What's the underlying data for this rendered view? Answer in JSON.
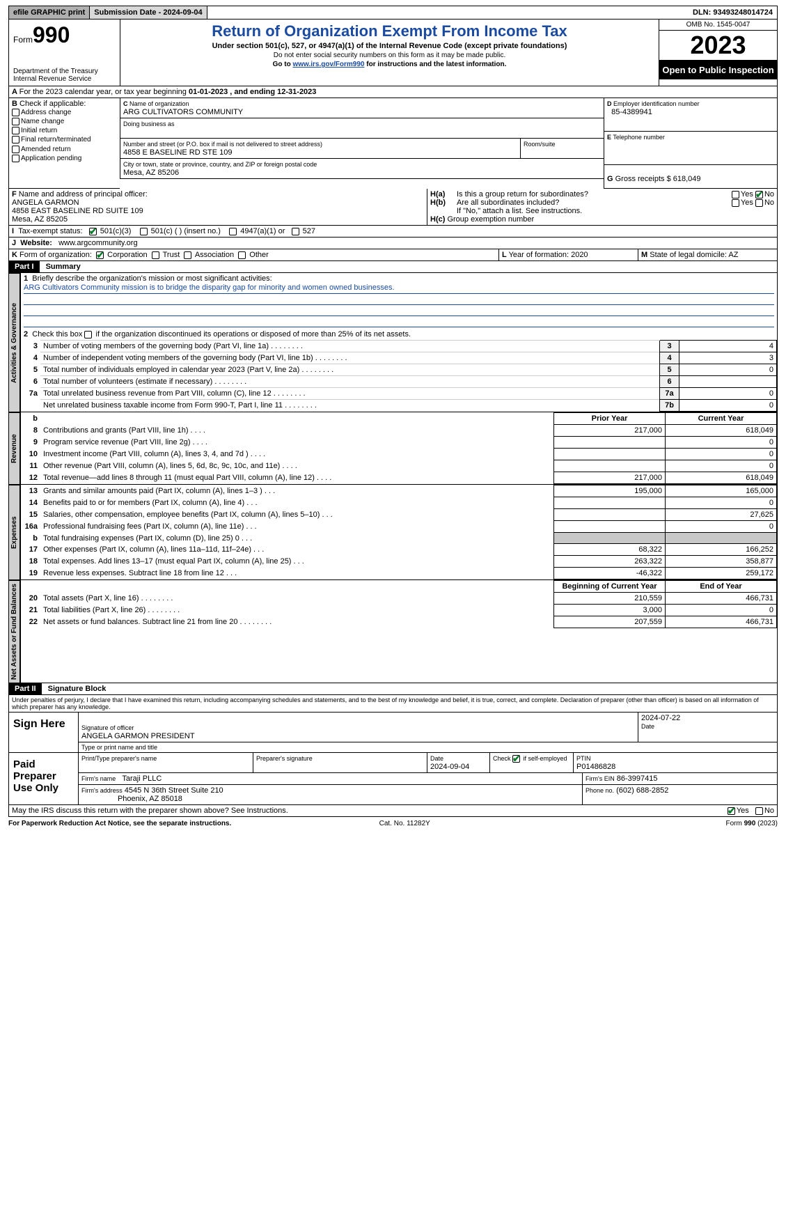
{
  "topbar": {
    "efile": "efile GRAPHIC print",
    "submission_label": "Submission Date - ",
    "submission_date": "2024-09-04",
    "dln_label": "DLN: ",
    "dln": "93493248014724"
  },
  "header": {
    "form_label": "Form",
    "form_no": "990",
    "dept": "Department of the Treasury\nInternal Revenue Service",
    "title": "Return of Organization Exempt From Income Tax",
    "sub": "Under section 501(c), 527, or 4947(a)(1) of the Internal Revenue Code (except private foundations)",
    "nossn": "Do not enter social security numbers on this form as it may be made public.",
    "goto_pre": "Go to ",
    "goto_link": "www.irs.gov/Form990",
    "goto_post": " for instructions and the latest information.",
    "omb": "OMB No. 1545-0047",
    "year": "2023",
    "otp": "Open to Public Inspection"
  },
  "A": {
    "text_pre": "For the 2023 calendar year, or tax year beginning ",
    "begin": "01-01-2023",
    "text_mid": " , and ending ",
    "end": "12-31-2023"
  },
  "B": {
    "label": "Check if applicable:",
    "opts": [
      "Address change",
      "Name change",
      "Initial return",
      "Final return/terminated",
      "Amended return",
      "Application pending"
    ]
  },
  "C": {
    "name_label": "Name of organization",
    "name": "ARG CULTIVATORS COMMUNITY",
    "dba_label": "Doing business as",
    "dba": "",
    "street_label": "Number and street (or P.O. box if mail is not delivered to street address)",
    "street": "4858 E BASELINE RD STE 109",
    "room_label": "Room/suite",
    "city_label": "City or town, state or province, country, and ZIP or foreign postal code",
    "city": "Mesa, AZ  85206"
  },
  "D": {
    "label": "Employer identification number",
    "val": "85-4389941"
  },
  "E": {
    "label": "Telephone number",
    "val": ""
  },
  "G": {
    "label": "Gross receipts $ ",
    "val": "618,049"
  },
  "F": {
    "label": "Name and address of principal officer:",
    "name": "ANGELA GARMON",
    "addr1": "4858 EAST BASELINE RD SUITE 109",
    "addr2": "Mesa, AZ  85205"
  },
  "H": {
    "a": "Is this a group return for subordinates?",
    "a_yes": false,
    "a_no": true,
    "b": "Are all subordinates included?",
    "b_yes": false,
    "b_no": false,
    "b_note": "If \"No,\" attach a list. See instructions.",
    "c": "Group exemption number"
  },
  "I": {
    "label": "Tax-exempt status:",
    "c501c3": true,
    "c501c": false,
    "c501c_insert": "(insert no.)",
    "c4947": false,
    "c4947_lbl": "4947(a)(1) or",
    "c527": false
  },
  "J": {
    "label": "Website:",
    "val": "www.argcommunity.org"
  },
  "K": {
    "label": "Form of organization:",
    "corp": true,
    "corp_lbl": "Corporation",
    "trust": false,
    "trust_lbl": "Trust",
    "assoc": false,
    "assoc_lbl": "Association",
    "other": false,
    "other_lbl": "Other"
  },
  "L": {
    "label": "Year of formation: ",
    "val": "2020"
  },
  "M": {
    "label": "State of legal domicile: ",
    "val": "AZ"
  },
  "part1": {
    "bar": "Part I",
    "title": "Summary",
    "l1_label": "Briefly describe the organization's mission or most significant activities:",
    "l1_text": "ARG Cultivators Community mission is to bridge the disparity gap for minority and women owned businesses.",
    "l2": "Check this box      if the organization discontinued its operations or disposed of more than 25% of its net assets.",
    "rows_gov": [
      {
        "n": "3",
        "t": "Number of voting members of the governing body (Part VI, line 1a)",
        "c": "3",
        "v": "4"
      },
      {
        "n": "4",
        "t": "Number of independent voting members of the governing body (Part VI, line 1b)",
        "c": "4",
        "v": "3"
      },
      {
        "n": "5",
        "t": "Total number of individuals employed in calendar year 2023 (Part V, line 2a)",
        "c": "5",
        "v": "0"
      },
      {
        "n": "6",
        "t": "Total number of volunteers (estimate if necessary)",
        "c": "6",
        "v": ""
      },
      {
        "n": "7a",
        "t": "Total unrelated business revenue from Part VIII, column (C), line 12",
        "c": "7a",
        "v": "0"
      },
      {
        "n": "",
        "t": "Net unrelated business taxable income from Form 990-T, Part I, line 11",
        "c": "7b",
        "v": "0"
      }
    ],
    "hdr_prior": "Prior Year",
    "hdr_curr": "Current Year",
    "rows_rev": [
      {
        "n": "8",
        "t": "Contributions and grants (Part VIII, line 1h)",
        "p": "217,000",
        "c": "618,049"
      },
      {
        "n": "9",
        "t": "Program service revenue (Part VIII, line 2g)",
        "p": "",
        "c": "0"
      },
      {
        "n": "10",
        "t": "Investment income (Part VIII, column (A), lines 3, 4, and 7d )",
        "p": "",
        "c": "0"
      },
      {
        "n": "11",
        "t": "Other revenue (Part VIII, column (A), lines 5, 6d, 8c, 9c, 10c, and 11e)",
        "p": "",
        "c": "0"
      },
      {
        "n": "12",
        "t": "Total revenue—add lines 8 through 11 (must equal Part VIII, column (A), line 12)",
        "p": "217,000",
        "c": "618,049"
      }
    ],
    "rows_exp": [
      {
        "n": "13",
        "t": "Grants and similar amounts paid (Part IX, column (A), lines 1–3 )",
        "p": "195,000",
        "c": "165,000"
      },
      {
        "n": "14",
        "t": "Benefits paid to or for members (Part IX, column (A), line 4)",
        "p": "",
        "c": "0"
      },
      {
        "n": "15",
        "t": "Salaries, other compensation, employee benefits (Part IX, column (A), lines 5–10)",
        "p": "",
        "c": "27,625"
      },
      {
        "n": "16a",
        "t": "Professional fundraising fees (Part IX, column (A), line 11e)",
        "p": "",
        "c": "0"
      },
      {
        "n": "b",
        "t": "Total fundraising expenses (Part IX, column (D), line 25) 0",
        "p": "GRAY",
        "c": "GRAY"
      },
      {
        "n": "17",
        "t": "Other expenses (Part IX, column (A), lines 11a–11d, 11f–24e)",
        "p": "68,322",
        "c": "166,252"
      },
      {
        "n": "18",
        "t": "Total expenses. Add lines 13–17 (must equal Part IX, column (A), line 25)",
        "p": "263,322",
        "c": "358,877"
      },
      {
        "n": "19",
        "t": "Revenue less expenses. Subtract line 18 from line 12",
        "p": "-46,322",
        "c": "259,172"
      }
    ],
    "hdr_boy": "Beginning of Current Year",
    "hdr_eoy": "End of Year",
    "rows_na": [
      {
        "n": "20",
        "t": "Total assets (Part X, line 16)",
        "p": "210,559",
        "c": "466,731"
      },
      {
        "n": "21",
        "t": "Total liabilities (Part X, line 26)",
        "p": "3,000",
        "c": "0"
      },
      {
        "n": "22",
        "t": "Net assets or fund balances. Subtract line 21 from line 20",
        "p": "207,559",
        "c": "466,731"
      }
    ],
    "tab_gov": "Activities & Governance",
    "tab_rev": "Revenue",
    "tab_exp": "Expenses",
    "tab_na": "Net Assets or Fund Balances"
  },
  "part2": {
    "bar": "Part II",
    "title": "Signature Block",
    "decl": "Under penalties of perjury, I declare that I have examined this return, including accompanying schedules and statements, and to the best of my knowledge and belief, it is true, correct, and complete. Declaration of preparer (other than officer) is based on all information of which preparer has any knowledge.",
    "sign_label": "Sign Here",
    "sig_of_officer": "Signature of officer",
    "officer_name": "ANGELA GARMON PRESIDENT",
    "officer_date": "2024-07-22",
    "type_name": "Type or print name and title",
    "date_lbl": "Date",
    "paid_label": "Paid Preparer Use Only",
    "prep_name_lbl": "Print/Type preparer's name",
    "prep_sig_lbl": "Preparer's signature",
    "prep_date": "2024-09-04",
    "self_emp_lbl": "Check        if self-employed",
    "self_emp": true,
    "ptin_lbl": "PTIN",
    "ptin": "P01486828",
    "firm_name_lbl": "Firm's name",
    "firm_name": "Taraji PLLC",
    "firm_ein_lbl": "Firm's EIN",
    "firm_ein": "86-3997415",
    "firm_addr_lbl": "Firm's address",
    "firm_addr1": "4545 N 36th Street Suite 210",
    "firm_addr2": "Phoenix, AZ  85018",
    "firm_phone_lbl": "Phone no.",
    "firm_phone": "(602) 688-2852",
    "discuss": "May the IRS discuss this return with the preparer shown above? See Instructions.",
    "discuss_yes": true,
    "discuss_no": false
  },
  "footer": {
    "pra": "For Paperwork Reduction Act Notice, see the separate instructions.",
    "cat": "Cat. No. 11282Y",
    "form": "Form 990 (2023)"
  }
}
